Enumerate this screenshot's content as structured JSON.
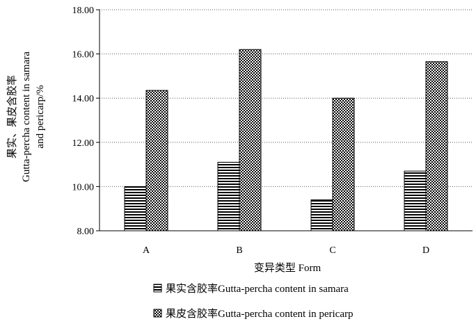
{
  "chart_data": {
    "type": "bar",
    "categories": [
      "A",
      "B",
      "C",
      "D"
    ],
    "series": [
      {
        "name": "果实含胶率Gutta-percha content in samara",
        "values": [
          10.0,
          11.1,
          9.4,
          10.7
        ],
        "pattern": "horizontal-stripes"
      },
      {
        "name": "果皮含胶率Gutta-percha content in pericarp",
        "values": [
          14.35,
          16.2,
          14.0,
          15.65
        ],
        "pattern": "checkered"
      }
    ],
    "xlabel": "变异类型 Form",
    "ylabel_lines": [
      "果实、果皮含胶率",
      "Gutta-percha content in samara",
      "and pericarp/%"
    ],
    "ylim": [
      8.0,
      18.0
    ],
    "yticks": [
      "8.00",
      "10.00",
      "12.00",
      "14.00",
      "16.00",
      "18.00"
    ],
    "ytick_values": [
      8,
      10,
      12,
      14,
      16,
      18
    ],
    "grid": "horizontal dotted",
    "legend_position": "bottom",
    "colors": {
      "bar_edge": "#000000",
      "grid": "#555555"
    }
  }
}
